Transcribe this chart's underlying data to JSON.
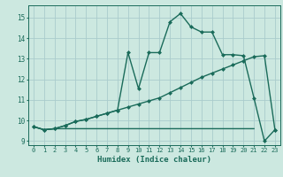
{
  "xlabel": "Humidex (Indice chaleur)",
  "bg_color": "#cce8e0",
  "grid_color": "#aacccc",
  "line_color": "#1a6b5a",
  "xlim": [
    -0.5,
    23.5
  ],
  "ylim": [
    8.8,
    15.6
  ],
  "xticks": [
    0,
    1,
    2,
    3,
    4,
    5,
    6,
    7,
    8,
    9,
    10,
    11,
    12,
    13,
    14,
    15,
    16,
    17,
    18,
    19,
    20,
    21,
    22,
    23
  ],
  "yticks": [
    9,
    10,
    11,
    12,
    13,
    14,
    15
  ],
  "line1_x": [
    0,
    1,
    2,
    3,
    4,
    5,
    6,
    7,
    8,
    9,
    10,
    11,
    12,
    13,
    14,
    15,
    16,
    17,
    18,
    19,
    20,
    21,
    22,
    23
  ],
  "line1_y": [
    9.7,
    9.55,
    9.6,
    9.75,
    9.95,
    10.05,
    10.2,
    10.35,
    10.5,
    13.3,
    11.55,
    13.3,
    13.3,
    14.8,
    15.2,
    14.55,
    14.3,
    14.3,
    13.2,
    13.2,
    13.15,
    11.1,
    9.0,
    9.55
  ],
  "line2_x": [
    0,
    1,
    2,
    3,
    4,
    5,
    6,
    7,
    8,
    9,
    10,
    11,
    12,
    13,
    14,
    15,
    16,
    17,
    18,
    19,
    20,
    21,
    22,
    23
  ],
  "line2_y": [
    9.7,
    9.55,
    9.6,
    9.75,
    9.95,
    10.05,
    10.2,
    10.35,
    10.5,
    10.65,
    10.8,
    10.95,
    11.1,
    11.35,
    11.6,
    11.85,
    12.1,
    12.3,
    12.5,
    12.7,
    12.9,
    13.1,
    13.15,
    9.55
  ],
  "line3_x": [
    0,
    1,
    2,
    3,
    4,
    5,
    6,
    7,
    8,
    9,
    10,
    11,
    12,
    13,
    14,
    15,
    16,
    17,
    18,
    19,
    20,
    21
  ],
  "line3_y": [
    9.7,
    9.55,
    9.6,
    9.6,
    9.6,
    9.6,
    9.6,
    9.6,
    9.6,
    9.6,
    9.6,
    9.6,
    9.6,
    9.6,
    9.6,
    9.6,
    9.6,
    9.6,
    9.6,
    9.6,
    9.6,
    9.6
  ],
  "markersize": 2.5,
  "linewidth": 1.0
}
